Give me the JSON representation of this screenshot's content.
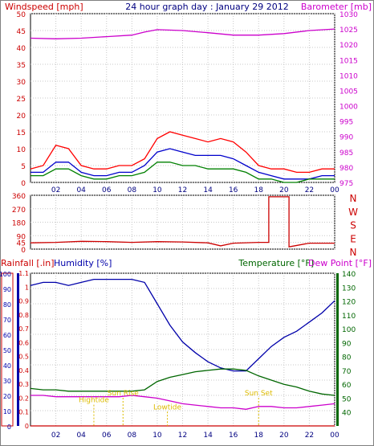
{
  "chart_data": [
    {
      "type": "line",
      "title": "24 hour graph day : January 29 2012",
      "ylabel_left": "Windspeed [mph]",
      "ylabel_right": "Barometer [mb]",
      "x_ticks": [
        "02",
        "04",
        "06",
        "08",
        "10",
        "12",
        "14",
        "16",
        "18",
        "20",
        "22",
        "00"
      ],
      "xlim": [
        0,
        24
      ],
      "ylim_left": [
        0,
        50
      ],
      "ylim_right": [
        975,
        1030
      ],
      "yticks_left": [
        0,
        5,
        10,
        15,
        20,
        25,
        30,
        35,
        40,
        45,
        50
      ],
      "yticks_right": [
        975,
        980,
        985,
        990,
        995,
        1000,
        1005,
        1010,
        1015,
        1020,
        1025,
        1030
      ],
      "grid": true,
      "colors": {
        "gust": "#ff0000",
        "average": "#0000cc",
        "low": "#008000",
        "barometer": "#cc00cc",
        "axis_left": "#cc0000",
        "axis_right": "#cc00cc",
        "title": "#000080"
      },
      "series": [
        {
          "key": "gust",
          "x": [
            0,
            1,
            2,
            3,
            4,
            5,
            6,
            7,
            8,
            9,
            10,
            11,
            12,
            13,
            14,
            15,
            16,
            17,
            18,
            19,
            20,
            21,
            22,
            23,
            24
          ],
          "y": [
            4,
            5,
            11,
            10,
            5,
            4,
            4,
            5,
            5,
            7,
            13,
            15,
            14,
            13,
            12,
            13,
            12,
            9,
            5,
            4,
            4,
            3,
            3,
            4,
            4
          ]
        },
        {
          "key": "average",
          "x": [
            0,
            1,
            2,
            3,
            4,
            5,
            6,
            7,
            8,
            9,
            10,
            11,
            12,
            13,
            14,
            15,
            16,
            17,
            18,
            19,
            20,
            21,
            22,
            23,
            24
          ],
          "y": [
            3,
            3,
            6,
            6,
            3,
            2,
            2,
            3,
            3,
            5,
            9,
            10,
            9,
            8,
            8,
            8,
            7,
            5,
            3,
            2,
            1,
            1,
            1,
            2,
            2
          ]
        },
        {
          "key": "low",
          "x": [
            0,
            1,
            2,
            3,
            4,
            5,
            6,
            7,
            8,
            9,
            10,
            11,
            12,
            13,
            14,
            15,
            16,
            17,
            18,
            19,
            20,
            21,
            22,
            23,
            24
          ],
          "y": [
            2,
            2,
            4,
            4,
            2,
            1,
            1,
            2,
            2,
            3,
            6,
            6,
            5,
            5,
            4,
            4,
            4,
            3,
            1,
            1,
            0,
            0,
            1,
            1,
            1
          ]
        },
        {
          "key": "barometer",
          "axis": "right",
          "x": [
            0,
            2,
            4,
            6,
            8,
            9,
            10,
            12,
            14,
            16,
            18,
            20,
            22,
            24
          ],
          "y": [
            1022,
            1021.8,
            1022,
            1022.5,
            1023,
            1024,
            1024.8,
            1024.5,
            1023.8,
            1023,
            1023,
            1023.5,
            1024.5,
            1025
          ]
        }
      ]
    },
    {
      "type": "line",
      "ylabel_right": [
        "N",
        "W",
        "S",
        "E",
        "N"
      ],
      "x_ticks": [
        "02",
        "04",
        "06",
        "08",
        "10",
        "12",
        "14",
        "16",
        "18",
        "20",
        "22",
        "00"
      ],
      "xlim": [
        0,
        24
      ],
      "ylim": [
        0,
        360
      ],
      "yticks": [
        0,
        45,
        90,
        180,
        270,
        360
      ],
      "grid": true,
      "colors": {
        "direction": "#cc0000"
      },
      "series": [
        {
          "key": "direction",
          "x": [
            0,
            2,
            4,
            6,
            8,
            10,
            12,
            14,
            15,
            16,
            18,
            18.8,
            18.8,
            20.4,
            20.4,
            22,
            24
          ],
          "y": [
            42,
            45,
            52,
            50,
            45,
            50,
            48,
            42,
            22,
            40,
            45,
            45,
            350,
            350,
            15,
            40,
            40
          ]
        }
      ]
    },
    {
      "type": "line",
      "ylabel_left_1": "Rainfall [.in]",
      "ylabel_left_2": "Humidity [%]",
      "ylabel_right_1": "Temperature [°F]",
      "ylabel_right_2": "Dew Point [°F]",
      "x_ticks": [
        "02",
        "04",
        "06",
        "08",
        "10",
        "12",
        "14",
        "16",
        "18",
        "20",
        "22",
        "00"
      ],
      "xlim": [
        0,
        24
      ],
      "ylim_humidity": [
        0,
        100
      ],
      "ylim_rain": [
        0,
        1.1
      ],
      "ylim_temp": [
        30,
        140
      ],
      "yticks_humidity": [
        0,
        10,
        20,
        30,
        40,
        50,
        60,
        70,
        80,
        90,
        100
      ],
      "yticks_rain": [
        0,
        0.1,
        0.2,
        0.3,
        0.4,
        0.5,
        0.6,
        0.7,
        0.8,
        0.9,
        1,
        1.1
      ],
      "yticks_temp": [
        40,
        50,
        60,
        70,
        80,
        90,
        100,
        110,
        120,
        130,
        140
      ],
      "grid": true,
      "annotations": [
        "Hightide",
        "Sun Rise",
        "Lowtide",
        "Sun Set"
      ],
      "colors": {
        "humidity": "#0000aa",
        "temperature": "#006600",
        "dewpoint": "#cc00cc",
        "rainfall": "#cc0000",
        "annotation": "#ddbb00"
      },
      "series": [
        {
          "key": "humidity",
          "axis": "humidity",
          "x": [
            0,
            1,
            2,
            3,
            4,
            5,
            6,
            7,
            8,
            9,
            10,
            11,
            12,
            13,
            14,
            15,
            16,
            17,
            18,
            19,
            20,
            21,
            22,
            23,
            24
          ],
          "y": [
            92,
            94,
            94,
            92,
            94,
            96,
            96,
            96,
            96,
            94,
            80,
            66,
            55,
            48,
            42,
            38,
            36,
            36,
            44,
            52,
            58,
            62,
            68,
            74,
            82
          ]
        },
        {
          "key": "temperature",
          "axis": "temp",
          "x": [
            0,
            1,
            2,
            3,
            4,
            5,
            6,
            7,
            8,
            9,
            10,
            11,
            12,
            13,
            14,
            15,
            16,
            17,
            18,
            19,
            20,
            21,
            22,
            23,
            24
          ],
          "y": [
            57,
            56,
            56,
            55,
            55,
            55,
            55,
            55,
            55,
            56,
            62,
            65,
            67,
            69,
            70,
            71,
            71,
            70,
            66,
            63,
            60,
            58,
            55,
            53,
            52
          ]
        },
        {
          "key": "dewpoint",
          "axis": "temp",
          "x": [
            0,
            1,
            2,
            3,
            4,
            5,
            6,
            7,
            8,
            9,
            10,
            11,
            12,
            13,
            14,
            15,
            16,
            17,
            18,
            19,
            20,
            21,
            22,
            23,
            24
          ],
          "y": [
            52,
            52,
            51,
            51,
            51,
            51,
            51,
            51,
            52,
            51,
            50,
            48,
            46,
            45,
            44,
            43,
            43,
            42,
            44,
            44,
            43,
            43,
            44,
            45,
            46
          ]
        },
        {
          "key": "rainfall",
          "axis": "rain",
          "x": [
            0,
            24
          ],
          "y": [
            0,
            0
          ]
        }
      ],
      "markers": [
        {
          "label": "Hightide",
          "x": 5.0,
          "y": 0.17
        },
        {
          "label": "Sun Rise",
          "x": 7.3,
          "y": 0.22
        },
        {
          "label": "Lowtide",
          "x": 10.8,
          "y": 0.12
        },
        {
          "label": "Sun Set",
          "x": 18.0,
          "y": 0.22
        }
      ]
    }
  ]
}
